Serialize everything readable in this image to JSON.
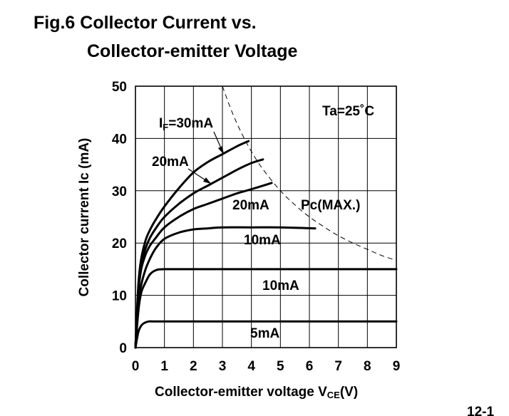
{
  "page_number": "12-1",
  "chart_data": {
    "type": "line",
    "title_line1": "Fig.6 Collector Current vs.",
    "title_line2": "Collector-emitter Voltage",
    "xlabel": "Collector-emitter voltage V",
    "xlabel_sub": "CE",
    "xlabel_unit": "(V)",
    "ylabel": "Collector current Ic (mA)",
    "xlim": [
      0,
      9
    ],
    "ylim": [
      0,
      50
    ],
    "xticks": [
      "0",
      "1",
      "2",
      "3",
      "4",
      "5",
      "6",
      "7",
      "8",
      "9"
    ],
    "yticks": [
      "0",
      "10",
      "20",
      "30",
      "40",
      "50"
    ],
    "grid": true,
    "condition_prefix": "Ta=25",
    "condition_suffix": "˚C",
    "series": [
      {
        "label_prefix": "I",
        "label_sub": "F",
        "label_value": "=30mA",
        "x": [
          0,
          0.1,
          0.2,
          0.35,
          0.5,
          0.7,
          1.0,
          1.5,
          2.0,
          2.5,
          3.0,
          3.5,
          3.9
        ],
        "y": [
          0,
          12,
          17,
          20.5,
          22.5,
          24.5,
          27,
          30.5,
          33.5,
          35.5,
          37,
          38.5,
          39.5
        ]
      },
      {
        "label": "20mA",
        "x": [
          0,
          0.1,
          0.2,
          0.35,
          0.5,
          0.7,
          1.0,
          1.5,
          2.0,
          2.5,
          3.0,
          3.5,
          4.0,
          4.4
        ],
        "y": [
          0,
          11,
          16,
          19,
          21,
          22.8,
          25,
          27.5,
          29.5,
          31,
          32.5,
          34,
          35.3,
          36
        ]
      },
      {
        "label": "20mA",
        "x": [
          0,
          0.1,
          0.2,
          0.35,
          0.5,
          0.7,
          1.0,
          1.5,
          2.0,
          2.5,
          3.0,
          3.5,
          4.0,
          4.7
        ],
        "y": [
          0,
          10.5,
          15,
          17.8,
          19.5,
          21,
          23,
          25,
          26.5,
          27.5,
          28.5,
          29.5,
          30.3,
          31.5
        ]
      },
      {
        "label": "10mA",
        "x": [
          0,
          0.1,
          0.2,
          0.35,
          0.5,
          0.7,
          1.0,
          1.5,
          2.0,
          2.5,
          3.0,
          4.0,
          5.0,
          6.2
        ],
        "y": [
          0,
          8.5,
          12,
          15,
          17,
          19,
          20.8,
          22,
          22.6,
          22.8,
          23,
          23,
          23,
          22.8
        ]
      },
      {
        "label": "10mA",
        "x": [
          0,
          0.1,
          0.2,
          0.35,
          0.5,
          0.7,
          1.0,
          2.0,
          3.0,
          4.0,
          5.0,
          6.0,
          7.0,
          8.0,
          9.0
        ],
        "y": [
          0,
          7,
          10.5,
          12.5,
          14,
          14.8,
          15,
          15,
          15,
          15,
          15,
          15,
          15,
          15,
          15
        ]
      },
      {
        "label": "5mA",
        "x": [
          0,
          0.1,
          0.2,
          0.3,
          0.45,
          0.6,
          1.0,
          2.0,
          3.0,
          4.0,
          5.0,
          6.0,
          7.0,
          8.0,
          9.0
        ],
        "y": [
          0,
          3,
          4.2,
          4.7,
          5,
          5,
          5,
          5,
          5,
          5,
          5,
          5,
          5,
          5,
          5
        ]
      }
    ],
    "pc_max_curve": {
      "label": "Pc(MAX.)",
      "x": [
        3.0,
        3.3,
        3.6,
        4.0,
        4.4,
        5.0,
        5.5,
        6.0,
        6.5,
        7.0,
        7.5,
        8.0,
        8.5,
        9.0
      ],
      "y": [
        50,
        45.5,
        41.7,
        37.5,
        34.1,
        30,
        27.3,
        25,
        23.1,
        21.4,
        20,
        18.8,
        17.6,
        16.7
      ]
    }
  }
}
